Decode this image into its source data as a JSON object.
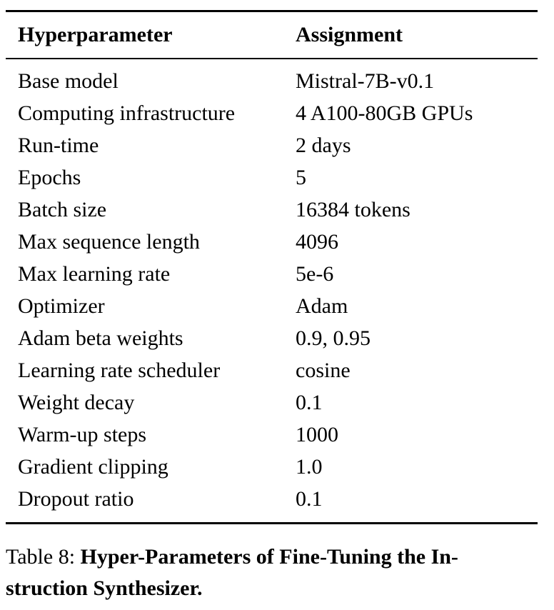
{
  "table": {
    "headers": [
      "Hyperparameter",
      "Assignment"
    ],
    "rows": [
      [
        "Base model",
        "Mistral-7B-v0.1"
      ],
      [
        "Computing infrastructure",
        "4 A100-80GB GPUs"
      ],
      [
        "Run-time",
        "2 days"
      ],
      [
        "Epochs",
        "5"
      ],
      [
        "Batch size",
        "16384 tokens"
      ],
      [
        "Max sequence length",
        "4096"
      ],
      [
        "Max learning rate",
        "5e-6"
      ],
      [
        "Optimizer",
        "Adam"
      ],
      [
        "Adam beta weights",
        "0.9, 0.95"
      ],
      [
        "Learning rate scheduler",
        "cosine"
      ],
      [
        "Weight decay",
        "0.1"
      ],
      [
        "Warm-up steps",
        "1000"
      ],
      [
        "Gradient clipping",
        "1.0"
      ],
      [
        "Dropout ratio",
        "0.1"
      ]
    ]
  },
  "caption": {
    "label": "Table 8:",
    "line1_bold": "Hyper-Parameters of Fine-Tuning the In-",
    "line2_bold": "struction Synthesizer."
  }
}
